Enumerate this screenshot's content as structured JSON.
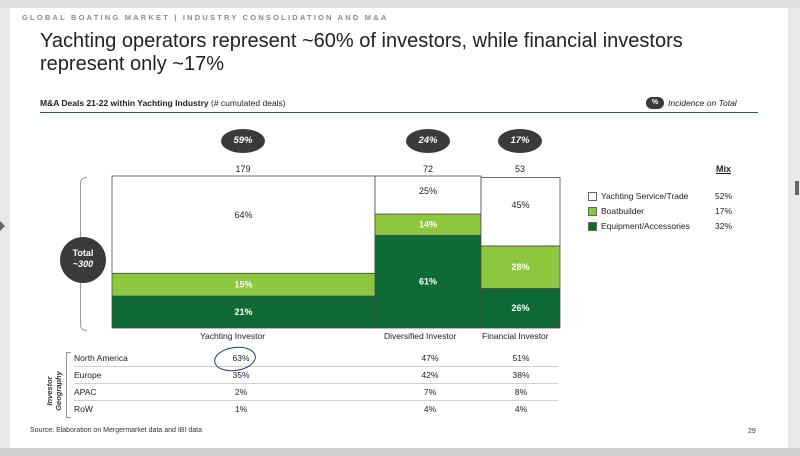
{
  "header": {
    "tag": "GLOBAL BOATING MARKET | INDUSTRY CONSOLIDATION AND M&A"
  },
  "title": "Yachting operators represent ~60% of investors, while financial investors represent only ~17%",
  "subtitle": {
    "bold": "M&A Deals 21-22 within Yachting Industry",
    "rest": " (# cumulated deals)"
  },
  "incidence": {
    "badge": "%",
    "label": "Incidence on Total"
  },
  "total": {
    "line1": "Total",
    "line2": "~300"
  },
  "chart_data": {
    "type": "bar",
    "subtype": "stacked-100-variable-width",
    "categories": [
      "Yachting Investor",
      "Diversified Investor",
      "Financial Investor"
    ],
    "category_deals": [
      179,
      72,
      53
    ],
    "category_incidence": [
      "59%",
      "24%",
      "17%"
    ],
    "series": [
      {
        "name": "Equipment/Accessories",
        "values": [
          21,
          61,
          26
        ],
        "labels": [
          "21%",
          "61%",
          "26%"
        ],
        "color": "#0e6b35",
        "mix": "32%"
      },
      {
        "name": "Boatbuilder",
        "values": [
          15,
          14,
          28
        ],
        "labels": [
          "15%",
          "14%",
          "28%"
        ],
        "color": "#8dc63f",
        "mix": "17%"
      },
      {
        "name": "Yachting Service/Trade",
        "values": [
          64,
          25,
          45
        ],
        "labels": [
          "64%",
          "25%",
          "45%"
        ],
        "color": "#ffffff",
        "mix": "52%"
      }
    ],
    "mix_header": "Mix",
    "ylim": [
      0,
      100
    ]
  },
  "geography": {
    "label": "Investor Geography",
    "rows": [
      {
        "name": "North America",
        "values": [
          "63%",
          "47%",
          "51%"
        ]
      },
      {
        "name": "Europe",
        "values": [
          "35%",
          "42%",
          "38%"
        ]
      },
      {
        "name": "APAC",
        "values": [
          "2%",
          "7%",
          "8%"
        ]
      },
      {
        "name": "RoW",
        "values": [
          "1%",
          "4%",
          "4%"
        ]
      }
    ]
  },
  "source": "Source: Elaboration on Mergermarket data and IBI data",
  "page_number": "29"
}
